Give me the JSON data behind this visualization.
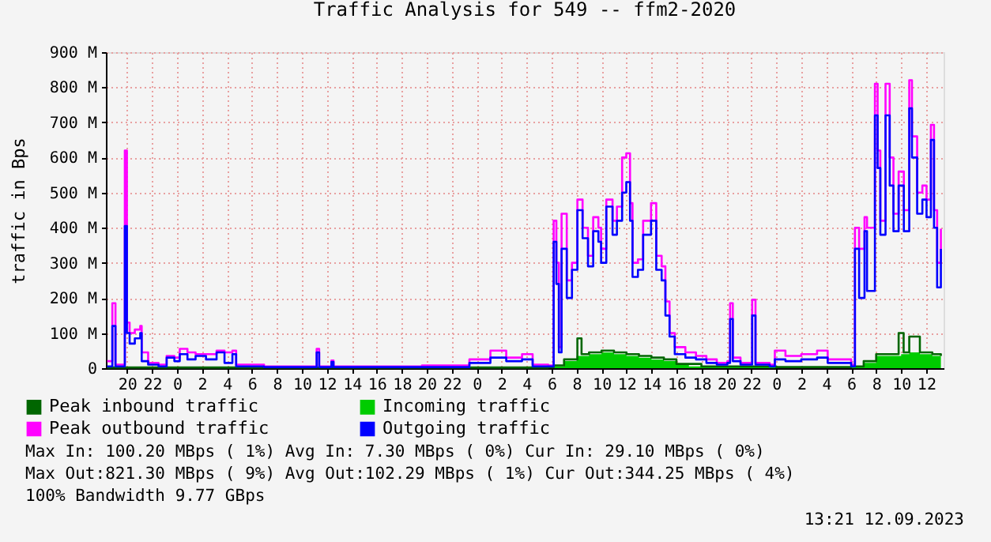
{
  "chart_data": {
    "type": "step",
    "title": "Traffic Analysis for 549 -- ffm2-2020",
    "ylabel": "traffic in Bps",
    "xlim": [
      "2023-09-09T18:18",
      "2023-09-12T13:24"
    ],
    "xticks": [
      {
        "value": "2023-09-09T20:00",
        "label": "20"
      },
      {
        "value": "2023-09-09T22:00",
        "label": "22"
      },
      {
        "value": "2023-09-10T00:00",
        "label": "0"
      },
      {
        "value": "2023-09-10T02:00",
        "label": "2"
      },
      {
        "value": "2023-09-10T04:00",
        "label": "4"
      },
      {
        "value": "2023-09-10T06:00",
        "label": "6"
      },
      {
        "value": "2023-09-10T08:00",
        "label": "8"
      },
      {
        "value": "2023-09-10T10:00",
        "label": "10"
      },
      {
        "value": "2023-09-10T12:00",
        "label": "12"
      },
      {
        "value": "2023-09-10T14:00",
        "label": "14"
      },
      {
        "value": "2023-09-10T16:00",
        "label": "16"
      },
      {
        "value": "2023-09-10T18:00",
        "label": "18"
      },
      {
        "value": "2023-09-10T20:00",
        "label": "20"
      },
      {
        "value": "2023-09-10T22:00",
        "label": "22"
      },
      {
        "value": "2023-09-11T00:00",
        "label": "0"
      },
      {
        "value": "2023-09-11T02:00",
        "label": "2"
      },
      {
        "value": "2023-09-11T04:00",
        "label": "4"
      },
      {
        "value": "2023-09-11T06:00",
        "label": "6"
      },
      {
        "value": "2023-09-11T08:00",
        "label": "8"
      },
      {
        "value": "2023-09-11T10:00",
        "label": "10"
      },
      {
        "value": "2023-09-11T12:00",
        "label": "12"
      },
      {
        "value": "2023-09-11T14:00",
        "label": "14"
      },
      {
        "value": "2023-09-11T16:00",
        "label": "16"
      },
      {
        "value": "2023-09-11T18:00",
        "label": "18"
      },
      {
        "value": "2023-09-11T20:00",
        "label": "20"
      },
      {
        "value": "2023-09-11T22:00",
        "label": "22"
      },
      {
        "value": "2023-09-12T00:00",
        "label": "0"
      },
      {
        "value": "2023-09-12T02:00",
        "label": "2"
      },
      {
        "value": "2023-09-12T04:00",
        "label": "4"
      },
      {
        "value": "2023-09-12T06:00",
        "label": "6"
      },
      {
        "value": "2023-09-12T08:00",
        "label": "8"
      },
      {
        "value": "2023-09-12T10:00",
        "label": "10"
      },
      {
        "value": "2023-09-12T12:00",
        "label": "12"
      }
    ],
    "ylim": [
      0,
      900
    ],
    "yticks": [
      0,
      {
        "value": 100,
        "label": "100 M"
      },
      {
        "value": 200,
        "label": "200 M"
      },
      {
        "value": 300,
        "label": "300 M"
      },
      {
        "value": 400,
        "label": "400 M"
      },
      {
        "value": 500,
        "label": "500 M"
      },
      {
        "value": 600,
        "label": "600 M"
      },
      {
        "value": 700,
        "label": "700 M"
      },
      {
        "value": 800,
        "label": "800 M"
      },
      {
        "value": 900,
        "label": "900 M"
      }
    ],
    "grid": true,
    "legend": "bottom",
    "series": [
      {
        "name": "Peak inbound traffic",
        "color": "#006600",
        "x": [
          "2023-09-09T18:24",
          "2023-09-11T05:44",
          "2023-09-11T06:10",
          "2023-09-11T07:00",
          "2023-09-11T08:04",
          "2023-09-11T08:24",
          "2023-09-11T09:00",
          "2023-09-11T10:00",
          "2023-09-11T11:00",
          "2023-09-11T12:00",
          "2023-09-11T13:00",
          "2023-09-11T14:00",
          "2023-09-11T15:00",
          "2023-09-11T16:00",
          "2023-09-11T18:00",
          "2023-09-12T00:00",
          "2023-09-12T06:00",
          "2023-09-12T07:00",
          "2023-09-12T08:00",
          "2023-09-12T09:00",
          "2023-09-12T09:48",
          "2023-09-12T10:12",
          "2023-09-12T10:39",
          "2023-09-12T11:30",
          "2023-09-12T12:30",
          "2023-09-12T13:11"
        ],
        "values": [
          2,
          3,
          8,
          25,
          85,
          40,
          45,
          50,
          45,
          40,
          35,
          30,
          25,
          12,
          5,
          3,
          5,
          20,
          40,
          40,
          100,
          45,
          90,
          45,
          40,
          35
        ]
      },
      {
        "name": "Peak outbound traffic",
        "color": "#ff00ff",
        "x": [
          "2023-09-09T18:24",
          "2023-09-09T18:49",
          "2023-09-09T19:04",
          "2023-09-09T19:49",
          "2023-09-09T19:59",
          "2023-09-09T20:12",
          "2023-09-09T20:37",
          "2023-09-09T21:03",
          "2023-09-09T21:10",
          "2023-09-09T21:41",
          "2023-09-09T22:31",
          "2023-09-09T23:10",
          "2023-09-09T23:47",
          "2023-09-10T00:13",
          "2023-09-10T00:50",
          "2023-09-10T01:29",
          "2023-09-10T02:19",
          "2023-09-10T03:10",
          "2023-09-10T03:48",
          "2023-09-10T04:26",
          "2023-09-10T04:44",
          "2023-09-10T06:58",
          "2023-09-10T10:46",
          "2023-09-10T11:11",
          "2023-09-10T11:23",
          "2023-09-10T12:22",
          "2023-09-10T12:32",
          "2023-09-10T15:23",
          "2023-09-10T19:37",
          "2023-09-10T23:25",
          "2023-09-11T01:06",
          "2023-09-11T02:22",
          "2023-09-11T03:38",
          "2023-09-11T04:29",
          "2023-09-11T05:44",
          "2023-09-11T06:10",
          "2023-09-11T06:23",
          "2023-09-11T06:35",
          "2023-09-11T06:48",
          "2023-09-11T07:13",
          "2023-09-11T07:38",
          "2023-09-11T08:04",
          "2023-09-11T08:29",
          "2023-09-11T08:55",
          "2023-09-11T09:20",
          "2023-09-11T09:45",
          "2023-09-11T09:58",
          "2023-09-11T10:23",
          "2023-09-11T10:53",
          "2023-09-11T11:14",
          "2023-09-11T11:39",
          "2023-09-11T11:59",
          "2023-09-11T12:17",
          "2023-09-11T12:29",
          "2023-09-11T12:55",
          "2023-09-11T13:20",
          "2023-09-11T13:58",
          "2023-09-11T14:23",
          "2023-09-11T14:49",
          "2023-09-11T15:07",
          "2023-09-11T15:27",
          "2023-09-11T15:52",
          "2023-09-11T16:43",
          "2023-09-11T17:34",
          "2023-09-11T18:24",
          "2023-09-11T19:14",
          "2023-09-11T20:05",
          "2023-09-11T20:18",
          "2023-09-11T20:31",
          "2023-09-11T21:08",
          "2023-09-11T22:04",
          "2023-09-11T22:20",
          "2023-09-11T23:28",
          "2023-09-11T23:53",
          "2023-09-12T00:44",
          "2023-09-12T02:00",
          "2023-09-12T03:16",
          "2023-09-12T04:07",
          "2023-09-12T05:22",
          "2023-09-12T06:00",
          "2023-09-12T06:18",
          "2023-09-12T06:38",
          "2023-09-12T07:04",
          "2023-09-12T07:16",
          "2023-09-12T07:54",
          "2023-09-12T08:07",
          "2023-09-12T08:20",
          "2023-09-12T08:45",
          "2023-09-12T09:05",
          "2023-09-12T09:23",
          "2023-09-12T09:48",
          "2023-09-12T10:13",
          "2023-09-12T10:39",
          "2023-09-12T10:52",
          "2023-09-12T11:17",
          "2023-09-12T11:42",
          "2023-09-12T12:02",
          "2023-09-12T12:23",
          "2023-09-12T12:38",
          "2023-09-12T12:53",
          "2023-09-12T13:11"
        ],
        "values": [
          20,
          185,
          10,
          620,
          130,
          100,
          110,
          120,
          45,
          15,
          10,
          35,
          30,
          55,
          45,
          40,
          40,
          50,
          45,
          50,
          10,
          5,
          5,
          55,
          5,
          22,
          5,
          5,
          8,
          25,
          50,
          30,
          40,
          10,
          8,
          420,
          300,
          60,
          440,
          250,
          300,
          480,
          400,
          320,
          430,
          400,
          340,
          480,
          420,
          460,
          600,
          612,
          470,
          300,
          310,
          420,
          470,
          320,
          290,
          190,
          100,
          60,
          45,
          35,
          25,
          15,
          20,
          185,
          30,
          15,
          195,
          15,
          10,
          50,
          35,
          40,
          50,
          25,
          25,
          10,
          400,
          340,
          430,
          400,
          810,
          620,
          420,
          810,
          600,
          440,
          560,
          450,
          820,
          660,
          500,
          520,
          480,
          693,
          450,
          300,
          397
        ]
      },
      {
        "name": "Incoming traffic",
        "type": "area",
        "color": "#00cc00",
        "x": [
          "2023-09-09T18:24",
          "2023-09-11T05:44",
          "2023-09-11T06:10",
          "2023-09-11T07:00",
          "2023-09-11T08:00",
          "2023-09-11T09:00",
          "2023-09-11T10:00",
          "2023-09-11T11:00",
          "2023-09-11T12:00",
          "2023-09-11T13:00",
          "2023-09-11T14:00",
          "2023-09-11T15:00",
          "2023-09-11T16:00",
          "2023-09-11T17:00",
          "2023-09-11T18:00",
          "2023-09-11T20:00",
          "2023-09-12T00:00",
          "2023-09-12T06:00",
          "2023-09-12T07:00",
          "2023-09-12T08:00",
          "2023-09-12T09:00",
          "2023-09-12T10:00",
          "2023-09-12T10:39",
          "2023-09-12T11:30",
          "2023-09-12T12:30",
          "2023-09-12T13:11"
        ],
        "values": [
          1,
          2,
          5,
          20,
          35,
          40,
          45,
          40,
          35,
          30,
          25,
          20,
          10,
          5,
          3,
          2,
          2,
          3,
          15,
          35,
          35,
          40,
          45,
          40,
          35,
          29
        ]
      },
      {
        "name": "Outgoing traffic",
        "color": "#0000ff",
        "x": [
          "2023-09-09T18:24",
          "2023-09-09T18:49",
          "2023-09-09T19:04",
          "2023-09-09T19:49",
          "2023-09-09T19:59",
          "2023-09-09T20:12",
          "2023-09-09T20:37",
          "2023-09-09T21:03",
          "2023-09-09T21:10",
          "2023-09-09T21:41",
          "2023-09-09T22:31",
          "2023-09-09T23:10",
          "2023-09-09T23:47",
          "2023-09-10T00:13",
          "2023-09-10T00:50",
          "2023-09-10T01:29",
          "2023-09-10T02:19",
          "2023-09-10T03:10",
          "2023-09-10T03:48",
          "2023-09-10T04:26",
          "2023-09-10T04:44",
          "2023-09-10T06:58",
          "2023-09-10T10:46",
          "2023-09-10T11:11",
          "2023-09-10T11:23",
          "2023-09-10T12:22",
          "2023-09-10T12:32",
          "2023-09-10T15:23",
          "2023-09-10T19:37",
          "2023-09-10T23:25",
          "2023-09-11T01:06",
          "2023-09-11T02:22",
          "2023-09-11T03:38",
          "2023-09-11T04:29",
          "2023-09-11T05:44",
          "2023-09-11T06:10",
          "2023-09-11T06:23",
          "2023-09-11T06:35",
          "2023-09-11T06:48",
          "2023-09-11T07:13",
          "2023-09-11T07:38",
          "2023-09-11T08:04",
          "2023-09-11T08:29",
          "2023-09-11T08:55",
          "2023-09-11T09:20",
          "2023-09-11T09:45",
          "2023-09-11T09:58",
          "2023-09-11T10:23",
          "2023-09-11T10:53",
          "2023-09-11T11:14",
          "2023-09-11T11:39",
          "2023-09-11T11:59",
          "2023-09-11T12:17",
          "2023-09-11T12:29",
          "2023-09-11T12:55",
          "2023-09-11T13:20",
          "2023-09-11T13:58",
          "2023-09-11T14:23",
          "2023-09-11T14:49",
          "2023-09-11T15:07",
          "2023-09-11T15:27",
          "2023-09-11T15:52",
          "2023-09-11T16:43",
          "2023-09-11T17:34",
          "2023-09-11T18:24",
          "2023-09-11T19:14",
          "2023-09-11T20:05",
          "2023-09-11T20:18",
          "2023-09-11T20:31",
          "2023-09-11T21:08",
          "2023-09-11T22:04",
          "2023-09-11T22:20",
          "2023-09-11T23:28",
          "2023-09-11T23:53",
          "2023-09-12T00:44",
          "2023-09-12T02:00",
          "2023-09-12T03:16",
          "2023-09-12T04:07",
          "2023-09-12T05:22",
          "2023-09-12T06:00",
          "2023-09-12T06:18",
          "2023-09-12T06:38",
          "2023-09-12T07:04",
          "2023-09-12T07:16",
          "2023-09-12T07:54",
          "2023-09-12T08:07",
          "2023-09-12T08:20",
          "2023-09-12T08:45",
          "2023-09-12T09:05",
          "2023-09-12T09:23",
          "2023-09-12T09:48",
          "2023-09-12T10:13",
          "2023-09-12T10:39",
          "2023-09-12T10:52",
          "2023-09-12T11:17",
          "2023-09-12T11:42",
          "2023-09-12T12:02",
          "2023-09-12T12:23",
          "2023-09-12T12:38",
          "2023-09-12T12:53",
          "2023-09-12T13:11"
        ],
        "values": [
          5,
          120,
          5,
          405,
          100,
          70,
          85,
          100,
          20,
          10,
          5,
          30,
          20,
          40,
          25,
          35,
          25,
          45,
          15,
          40,
          5,
          3,
          3,
          45,
          3,
          18,
          3,
          3,
          3,
          15,
          30,
          20,
          25,
          5,
          5,
          360,
          240,
          45,
          340,
          200,
          280,
          450,
          370,
          290,
          390,
          360,
          300,
          460,
          380,
          420,
          500,
          530,
          420,
          260,
          280,
          380,
          420,
          280,
          250,
          150,
          90,
          40,
          30,
          25,
          15,
          10,
          15,
          140,
          20,
          10,
          150,
          10,
          5,
          25,
          20,
          25,
          30,
          15,
          15,
          5,
          340,
          200,
          390,
          220,
          720,
          570,
          380,
          720,
          520,
          390,
          520,
          390,
          740,
          600,
          440,
          480,
          430,
          650,
          400,
          230,
          340
        ]
      }
    ],
    "annotations": [
      "Max In: 100.20 MBps ( 1%)  Avg In:   7.30 MBps ( 0%)  Cur In:  29.10 MBps ( 0%)",
      "Max Out:821.30 MBps ( 9%)  Avg Out:102.29 MBps ( 1%)  Cur Out:344.25 MBps ( 4%)",
      "100% Bandwidth 9.77 GBps",
      "13:21 12.09.2023"
    ]
  }
}
